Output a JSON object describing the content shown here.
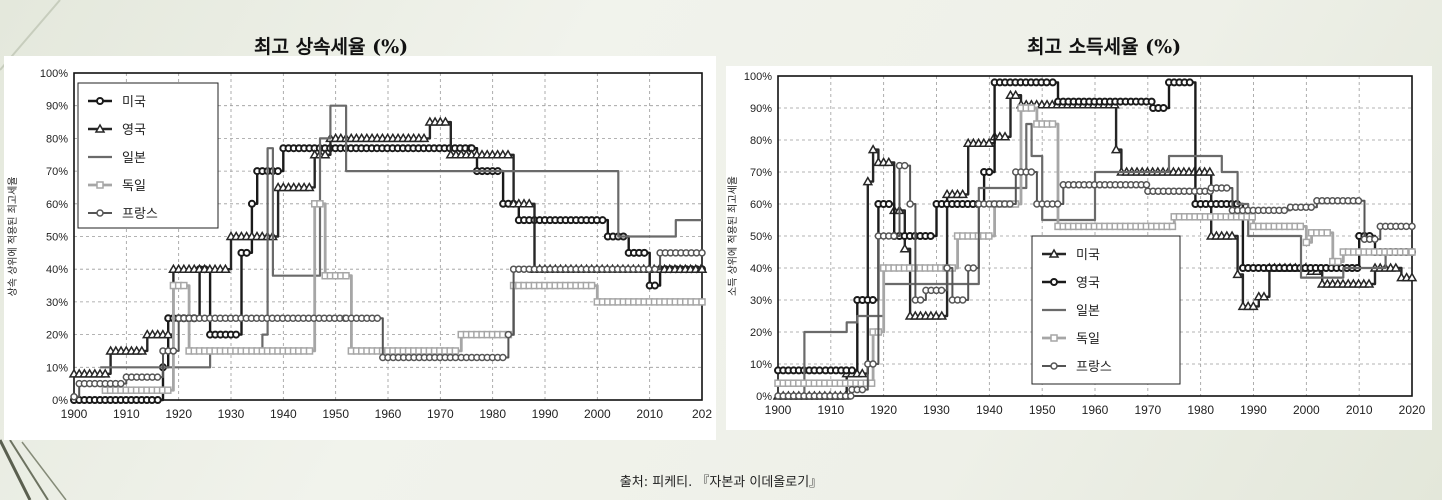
{
  "titles": {
    "left": "최고 상속세율 (%)",
    "right": "최고 소득세율 (%)"
  },
  "source": "출처: 피케티. 『자본과 이데올로기』",
  "chart_data": [
    {
      "type": "line",
      "title": "최고 상속세율 (%)",
      "xlabel": "",
      "ylabel": "상속 상위에 적용된 최고세율",
      "xlim": [
        1900,
        2020
      ],
      "ylim": [
        0,
        100
      ],
      "xticks": [
        "1900",
        "1910",
        "1920",
        "1930",
        "1940",
        "1950",
        "1960",
        "1970",
        "1980",
        "1990",
        "2000",
        "2010",
        "202"
      ],
      "yticks": [
        "0%",
        "10%",
        "20%",
        "30%",
        "40%",
        "50%",
        "60%",
        "70%",
        "80%",
        "90%",
        "100%"
      ],
      "grid": true,
      "legend": "top-left",
      "series": [
        {
          "name": "미국",
          "marker": "dot-dark",
          "values": [
            [
              1900,
              0
            ],
            [
              1916,
              0
            ],
            [
              1917,
              10
            ],
            [
              1918,
              25
            ],
            [
              1924,
              40
            ],
            [
              1926,
              20
            ],
            [
              1932,
              45
            ],
            [
              1934,
              60
            ],
            [
              1935,
              70
            ],
            [
              1940,
              77
            ],
            [
              1976,
              77
            ],
            [
              1977,
              70
            ],
            [
              1982,
              60
            ],
            [
              1985,
              55
            ],
            [
              2001,
              55
            ],
            [
              2002,
              50
            ],
            [
              2006,
              45
            ],
            [
              2010,
              35
            ],
            [
              2011,
              35
            ],
            [
              2012,
              40
            ],
            [
              2020,
              40
            ]
          ]
        },
        {
          "name": "영국",
          "marker": "triangle",
          "values": [
            [
              1900,
              8
            ],
            [
              1907,
              15
            ],
            [
              1914,
              20
            ],
            [
              1919,
              40
            ],
            [
              1930,
              50
            ],
            [
              1939,
              65
            ],
            [
              1946,
              75
            ],
            [
              1949,
              80
            ],
            [
              1968,
              85
            ],
            [
              1972,
              75
            ],
            [
              1984,
              60
            ],
            [
              1988,
              40
            ],
            [
              2020,
              40
            ]
          ]
        },
        {
          "name": "일본",
          "marker": "none",
          "values": [
            [
              1905,
              10
            ],
            [
              1926,
              15
            ],
            [
              1936,
              20
            ],
            [
              1937,
              77
            ],
            [
              1938,
              38
            ],
            [
              1947,
              80
            ],
            [
              1949,
              90
            ],
            [
              1950,
              90
            ],
            [
              1952,
              70
            ],
            [
              1987,
              70
            ],
            [
              2003,
              70
            ],
            [
              2004,
              50
            ],
            [
              2014,
              50
            ],
            [
              2015,
              55
            ],
            [
              2020,
              55
            ]
          ]
        },
        {
          "name": "독일",
          "marker": "square",
          "values": [
            [
              1906,
              3
            ],
            [
              1919,
              35
            ],
            [
              1922,
              15
            ],
            [
              1934,
              15
            ],
            [
              1945,
              15
            ],
            [
              1946,
              60
            ],
            [
              1948,
              38
            ],
            [
              1953,
              15
            ],
            [
              1974,
              20
            ],
            [
              1983,
              20
            ],
            [
              1984,
              35
            ],
            [
              2000,
              30
            ],
            [
              2020,
              30
            ]
          ]
        },
        {
          "name": "프랑스",
          "marker": "dot-open",
          "values": [
            [
              1900,
              1
            ],
            [
              1901,
              5
            ],
            [
              1910,
              7
            ],
            [
              1917,
              15
            ],
            [
              1920,
              25
            ],
            [
              1952,
              25
            ],
            [
              1959,
              13
            ],
            [
              1974,
              13
            ],
            [
              1983,
              20
            ],
            [
              1984,
              40
            ],
            [
              2011,
              40
            ],
            [
              2012,
              45
            ],
            [
              2020,
              45
            ]
          ]
        }
      ]
    },
    {
      "type": "line",
      "title": "최고 소득세율 (%)",
      "xlabel": "",
      "ylabel": "소득 상위에 적용된 최고세율",
      "xlim": [
        1900,
        2020
      ],
      "ylim": [
        0,
        100
      ],
      "xticks": [
        "1900",
        "1910",
        "1920",
        "1930",
        "1940",
        "1950",
        "1960",
        "1970",
        "1980",
        "1990",
        "2000",
        "2010",
        "2020"
      ],
      "yticks": [
        "0%",
        "10%",
        "20%",
        "30%",
        "40%",
        "50%",
        "60%",
        "70%",
        "80%",
        "90%",
        "100%"
      ],
      "grid": true,
      "legend": "bottom-center",
      "series": [
        {
          "name": "미국",
          "marker": "triangle",
          "values": [
            [
              1900,
              0
            ],
            [
              1913,
              7
            ],
            [
              1917,
              67
            ],
            [
              1918,
              77
            ],
            [
              1919,
              73
            ],
            [
              1922,
              58
            ],
            [
              1924,
              46
            ],
            [
              1925,
              25
            ],
            [
              1931,
              25
            ],
            [
              1932,
              63
            ],
            [
              1936,
              79
            ],
            [
              1941,
              81
            ],
            [
              1944,
              94
            ],
            [
              1946,
              91
            ],
            [
              1964,
              77
            ],
            [
              1965,
              70
            ],
            [
              1982,
              50
            ],
            [
              1987,
              38
            ],
            [
              1988,
              28
            ],
            [
              1991,
              31
            ],
            [
              1993,
              40
            ],
            [
              2001,
              39
            ],
            [
              2003,
              35
            ],
            [
              2013,
              40
            ],
            [
              2018,
              37
            ],
            [
              2020,
              37
            ]
          ]
        },
        {
          "name": "영국",
          "marker": "dot-dark",
          "values": [
            [
              1900,
              8
            ],
            [
              1909,
              8
            ],
            [
              1914,
              8
            ],
            [
              1915,
              30
            ],
            [
              1919,
              60
            ],
            [
              1921,
              60
            ],
            [
              1922,
              50
            ],
            [
              1930,
              60
            ],
            [
              1939,
              70
            ],
            [
              1941,
              98
            ],
            [
              1952,
              98
            ],
            [
              1953,
              92
            ],
            [
              1971,
              90
            ],
            [
              1974,
              98
            ],
            [
              1979,
              60
            ],
            [
              1988,
              40
            ],
            [
              2010,
              50
            ],
            [
              2013,
              45
            ],
            [
              2020,
              45
            ]
          ]
        },
        {
          "name": "일본",
          "marker": "none",
          "values": [
            [
              1900,
              0
            ],
            [
              1905,
              20
            ],
            [
              1912,
              20
            ],
            [
              1913,
              23
            ],
            [
              1915,
              25
            ],
            [
              1920,
              35
            ],
            [
              1935,
              35
            ],
            [
              1938,
              65
            ],
            [
              1947,
              85
            ],
            [
              1948,
              75
            ],
            [
              1950,
              55
            ],
            [
              1960,
              70
            ],
            [
              1974,
              75
            ],
            [
              1984,
              70
            ],
            [
              1987,
              60
            ],
            [
              1989,
              50
            ],
            [
              1999,
              37
            ],
            [
              2007,
              40
            ],
            [
              2015,
              45
            ],
            [
              2020,
              45
            ]
          ]
        },
        {
          "name": "독일",
          "marker": "square",
          "values": [
            [
              1900,
              4
            ],
            [
              1918,
              20
            ],
            [
              1920,
              40
            ],
            [
              1932,
              40
            ],
            [
              1934,
              50
            ],
            [
              1941,
              60
            ],
            [
              1946,
              90
            ],
            [
              1949,
              85
            ],
            [
              1953,
              53
            ],
            [
              1975,
              56
            ],
            [
              1990,
              53
            ],
            [
              2000,
              48
            ],
            [
              2001,
              51
            ],
            [
              2005,
              42
            ],
            [
              2007,
              45
            ],
            [
              2020,
              45
            ]
          ]
        },
        {
          "name": "프랑스",
          "marker": "dot-open",
          "values": [
            [
              1900,
              0
            ],
            [
              1914,
              2
            ],
            [
              1917,
              10
            ],
            [
              1919,
              50
            ],
            [
              1923,
              72
            ],
            [
              1925,
              60
            ],
            [
              1926,
              30
            ],
            [
              1928,
              33
            ],
            [
              1932,
              40
            ],
            [
              1933,
              30
            ],
            [
              1936,
              40
            ],
            [
              1938,
              60
            ],
            [
              1945,
              70
            ],
            [
              1949,
              60
            ],
            [
              1954,
              66
            ],
            [
              1970,
              64
            ],
            [
              1982,
              65
            ],
            [
              1986,
              58
            ],
            [
              1997,
              59
            ],
            [
              2002,
              61
            ],
            [
              2011,
              49
            ],
            [
              2014,
              53
            ],
            [
              2020,
              53
            ]
          ]
        }
      ]
    }
  ]
}
